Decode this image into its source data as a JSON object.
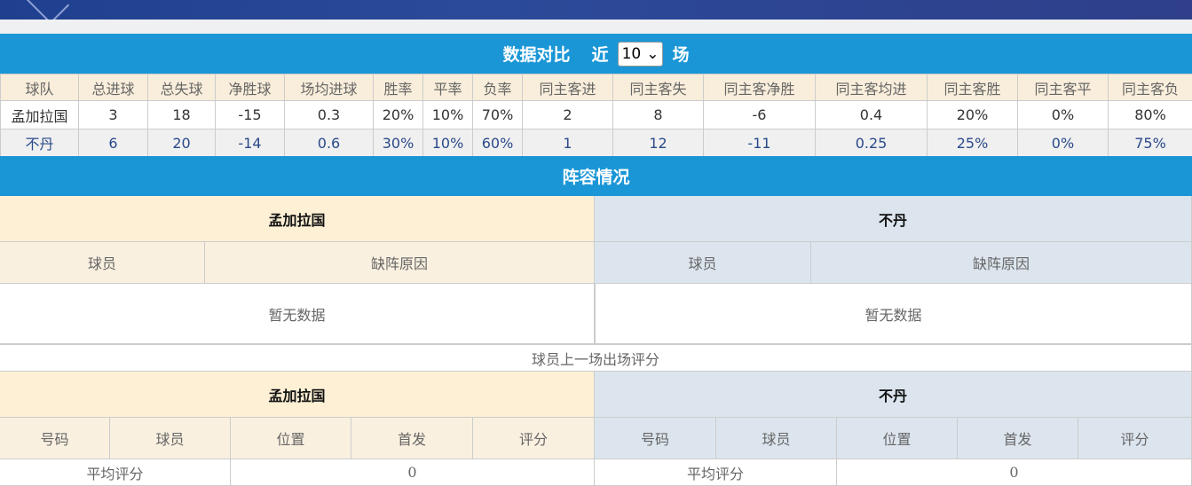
{
  "stats": {
    "title": "数据对比",
    "recent_prefix": "近",
    "recent_value": "10",
    "recent_suffix": "场",
    "headers": [
      "球队",
      "总进球",
      "总失球",
      "净胜球",
      "场均进球",
      "胜率",
      "平率",
      "负率",
      "同主客进",
      "同主客失",
      "同主客净胜",
      "同主客均进",
      "同主客胜",
      "同主客平",
      "同主客负"
    ],
    "rows": [
      [
        "孟加拉国",
        "3",
        "18",
        "-15",
        "0.3",
        "20%",
        "10%",
        "70%",
        "2",
        "8",
        "-6",
        "0.4",
        "20%",
        "0%",
        "80%"
      ],
      [
        "不丹",
        "6",
        "20",
        "-14",
        "0.6",
        "30%",
        "10%",
        "60%",
        "1",
        "12",
        "-11",
        "0.25",
        "25%",
        "0%",
        "75%"
      ]
    ]
  },
  "lineup": {
    "title": "阵容情况",
    "home": "孟加拉国",
    "away": "不丹",
    "col_player": "球员",
    "col_reason": "缺阵原因",
    "empty": "暂无数据"
  },
  "rating": {
    "title": "球员上一场出场评分",
    "home": "孟加拉国",
    "away": "不丹",
    "cols": [
      "号码",
      "球员",
      "位置",
      "首发",
      "评分"
    ],
    "avg_label": "平均评分",
    "home_avg": "0",
    "away_avg": "0"
  }
}
